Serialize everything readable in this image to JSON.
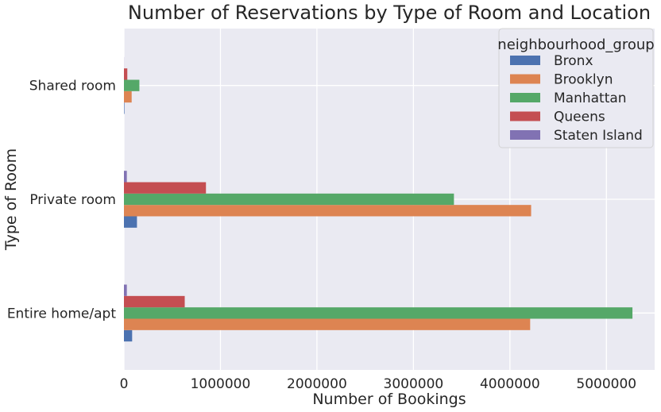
{
  "chart_data": {
    "type": "bar",
    "orientation": "horizontal",
    "title": "Number of Reservations by Type of Room and Location",
    "xlabel": "Number of Bookings",
    "ylabel": "Type of Room",
    "categories": [
      "Entire home/apt",
      "Private room",
      "Shared room"
    ],
    "xlim": [
      0,
      5500000
    ],
    "xticks": [
      0,
      1000000,
      2000000,
      3000000,
      4000000,
      5000000
    ],
    "xtick_labels": [
      "0",
      "1000000",
      "2000000",
      "3000000",
      "4000000",
      "5000000"
    ],
    "grid": true,
    "legend": {
      "title": "neighbourhood_group",
      "position": "top-right"
    },
    "series": [
      {
        "name": "Bronx",
        "color": "#4c72b0",
        "values": [
          85000,
          135000,
          5000
        ]
      },
      {
        "name": "Brooklyn",
        "color": "#dd8452",
        "values": [
          4210000,
          4220000,
          80000
        ]
      },
      {
        "name": "Manhattan",
        "color": "#55a868",
        "values": [
          5270000,
          3420000,
          160000
        ]
      },
      {
        "name": "Queens",
        "color": "#c44e52",
        "values": [
          630000,
          850000,
          35000
        ]
      },
      {
        "name": "Staten Island",
        "color": "#8172b3",
        "values": [
          30000,
          30000,
          1000
        ]
      }
    ]
  },
  "style": {
    "background": "#eaeaf2",
    "grid_color": "#ffffff",
    "text_color": "#262626"
  }
}
